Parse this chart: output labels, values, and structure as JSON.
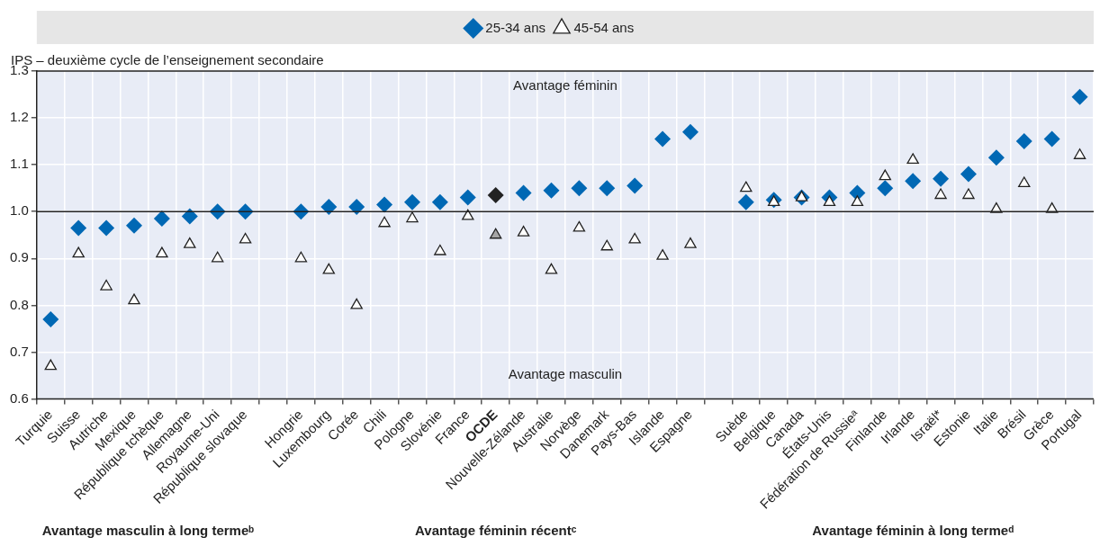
{
  "chart_data": {
    "type": "scatter",
    "ylabel": "IPS – deuxième cycle de l’enseignement secondaire",
    "categories": [
      "Turquie",
      "Suisse",
      "Autriche",
      "Mexique",
      "République tchèque",
      "Allemagne",
      "Royaume-Uni",
      "République slovaque",
      null,
      "Hongrie",
      "Luxembourg",
      "Corée",
      "Chili",
      "Pologne",
      "Slovénie",
      "France",
      "OCDE",
      "Nouvelle-Zélande",
      "Australie",
      "Norvège",
      "Danemark",
      "Pays-Bas",
      "Islande",
      "Espagne",
      null,
      "Suède",
      "Belgique",
      "Canada",
      "États-Unis",
      "Fédération de Russieᵃ",
      "Finlande",
      "Irlande",
      "Israël*",
      "Estonie",
      "Italie",
      "Brésil",
      "Grèce",
      "Portugal"
    ],
    "series": [
      {
        "name": "25-34 ans",
        "color": "#0068b4",
        "marker": "diamond",
        "colors": [
          "#0068b4",
          "#0068b4",
          "#0068b4",
          "#0068b4",
          "#0068b4",
          "#0068b4",
          "#0068b4",
          "#0068b4",
          "#0068b4",
          "#0068b4",
          "#0068b4",
          "#0068b4",
          "#0068b4",
          "#0068b4",
          "#0068b4",
          "#0068b4",
          "#222222",
          "#0068b4",
          "#0068b4",
          "#0068b4",
          "#0068b4",
          "#0068b4",
          "#0068b4",
          "#0068b4",
          "#0068b4",
          "#0068b4",
          "#0068b4",
          "#0068b4",
          "#0068b4",
          "#0068b4",
          "#0068b4",
          "#0068b4",
          "#0068b4",
          "#0068b4",
          "#0068b4",
          "#0068b4",
          "#0068b4",
          "#0068b4"
        ],
        "values": [
          0.77,
          0.965,
          0.965,
          0.97,
          0.985,
          0.99,
          1.0,
          1.0,
          null,
          1.0,
          1.01,
          1.01,
          1.015,
          1.02,
          1.02,
          1.03,
          1.035,
          1.04,
          1.045,
          1.05,
          1.05,
          1.055,
          1.155,
          1.17,
          null,
          1.02,
          1.025,
          1.03,
          1.03,
          1.04,
          1.05,
          1.065,
          1.07,
          1.08,
          1.115,
          1.15,
          1.155,
          1.245
        ]
      },
      {
        "name": "45-54 ans",
        "color": "#ffffff",
        "marker": "triangle",
        "colors": [
          "#ffffff",
          "#ffffff",
          "#ffffff",
          "#ffffff",
          "#ffffff",
          "#ffffff",
          "#ffffff",
          "#ffffff",
          "#ffffff",
          "#ffffff",
          "#ffffff",
          "#ffffff",
          "#ffffff",
          "#ffffff",
          "#ffffff",
          "#ffffff",
          "#a6a6a6",
          "#ffffff",
          "#ffffff",
          "#ffffff",
          "#ffffff",
          "#ffffff",
          "#ffffff",
          "#ffffff",
          "#ffffff",
          "#ffffff",
          "#ffffff",
          "#ffffff",
          "#ffffff",
          "#ffffff",
          "#ffffff",
          "#ffffff",
          "#ffffff",
          "#ffffff",
          "#ffffff",
          "#ffffff",
          "#ffffff",
          "#ffffff"
        ],
        "values": [
          0.67,
          0.91,
          0.84,
          0.81,
          0.91,
          0.93,
          0.9,
          0.94,
          null,
          0.9,
          0.875,
          0.8,
          0.975,
          0.985,
          0.915,
          0.99,
          0.95,
          0.955,
          0.875,
          0.965,
          0.925,
          0.94,
          0.905,
          0.93,
          null,
          1.05,
          1.02,
          1.03,
          1.02,
          1.02,
          1.075,
          1.11,
          1.035,
          1.035,
          1.005,
          1.06,
          1.005,
          1.12
        ]
      }
    ],
    "ylim": [
      0.6,
      1.3
    ],
    "yticks": [
      0.6,
      0.7,
      0.8,
      0.9,
      {
        "value": 1,
        "label": "1.0"
      },
      1.1,
      1.2,
      1.3
    ],
    "ref_lines": [
      {
        "axis": "y",
        "value": 1.0,
        "color": "#222222"
      }
    ],
    "annotations": [
      "Avantage féminin",
      "Avantage masculin",
      "Avantage masculin à long termeᵇ",
      "Avantage féminin récentᶜ",
      "Avantage féminin à long termeᵈ"
    ],
    "grid": true,
    "legend": "top"
  }
}
